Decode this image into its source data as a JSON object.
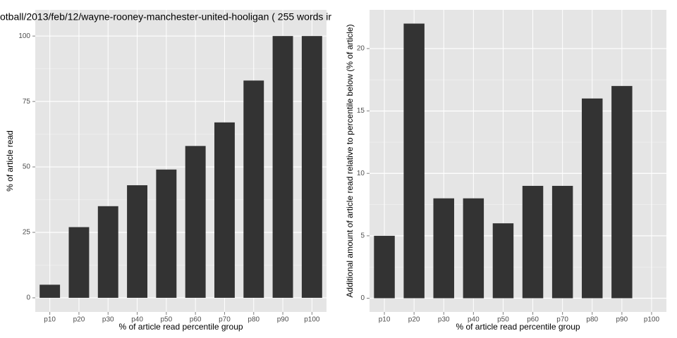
{
  "chart_data": [
    {
      "type": "bar",
      "title": "otball/2013/feb/12/wayne-rooney-manchester-united-hooligan ( 255 words ir",
      "x_label": "% of article read percentile group",
      "y_label": "% of article read",
      "categories": [
        "p10",
        "p20",
        "p30",
        "p40",
        "p50",
        "p60",
        "p70",
        "p80",
        "p90",
        "p100"
      ],
      "values": [
        5,
        27,
        35,
        43,
        49,
        58,
        67,
        83,
        100,
        100
      ],
      "color": "#333333",
      "ylim": [
        -5.4,
        110
      ],
      "yticks": [
        0,
        25,
        50,
        75,
        100
      ],
      "grid": true
    },
    {
      "type": "bar",
      "x_label": "% of article read percentile group",
      "y_label": "Additional amount of article read relative to percentile below (% of article)",
      "categories": [
        "p10",
        "p20",
        "p30",
        "p40",
        "p50",
        "p60",
        "p70",
        "p80",
        "p90",
        "p100"
      ],
      "values": [
        5,
        22,
        8,
        8,
        6,
        9,
        9,
        16,
        17,
        0
      ],
      "color": "#333333",
      "ylim": [
        -1.1,
        23.1
      ],
      "yticks": [
        0,
        5,
        10,
        15,
        20
      ],
      "grid": true
    }
  ]
}
